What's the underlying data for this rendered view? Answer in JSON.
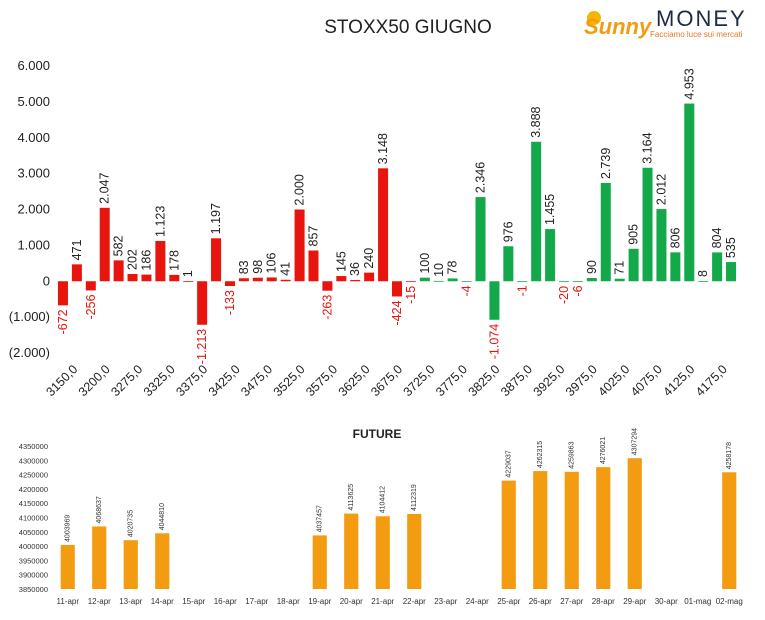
{
  "logo": {
    "brand_sunny": "Sunny",
    "brand_money": "MONEY",
    "tagline": "Facciamo luce sui mercati"
  },
  "chart_data": [
    {
      "type": "bar",
      "title": "STOXX50 GIUGNO",
      "ylim": [
        -2000,
        6000
      ],
      "y_tick_labels": [
        "6.000",
        "5.000",
        "4.000",
        "3.000",
        "2.000",
        "1.000",
        "0",
        "(1.000)",
        "(2.000)"
      ],
      "x_tick_labels": [
        "3150,0",
        "3200,0",
        "3275,0",
        "3325,0",
        "3375,0",
        "3425,0",
        "3475,0",
        "3525,0",
        "3575,0",
        "3625,0",
        "3675,0",
        "3725,0",
        "3775,0",
        "3825,0",
        "3875,0",
        "3925,0",
        "3975,0",
        "4025,0",
        "4075,0",
        "4125,0",
        "4175,0"
      ],
      "colors": {
        "red": "#e8140e",
        "green": "#13a94b",
        "neg_label": "#e8140e",
        "pos_label": "#222222"
      },
      "series": [
        {
          "color": "red",
          "values": [
            -672,
            471,
            -256,
            2047,
            582,
            202,
            186,
            1123,
            178,
            1,
            -1213,
            1197,
            -133,
            83,
            98,
            106,
            41,
            2000,
            857,
            -263,
            145,
            36,
            240,
            3148,
            -424,
            -15
          ]
        },
        {
          "color": "green",
          "values": [
            100,
            10,
            78,
            -4,
            2346,
            -1074,
            976,
            -1,
            3888,
            1455,
            -20,
            -6,
            90,
            2739,
            71,
            905,
            3164,
            2012,
            806,
            4953,
            8,
            804,
            535
          ]
        }
      ],
      "value_labels": [
        "-672",
        "471",
        "-256",
        "2.047",
        "582",
        "202",
        "186",
        "1.123",
        "178",
        "1",
        "-1.213",
        "1.197",
        "-133",
        "83",
        "98",
        "106",
        "41",
        "2.000",
        "857",
        "-263",
        "145",
        "36",
        "240",
        "3.148",
        "-424",
        "-15",
        "100",
        "10",
        "78",
        "-4",
        "2.346",
        "-1.074",
        "976",
        "-1",
        "3.888",
        "1.455",
        "-20",
        "-6",
        "90",
        "2.739",
        "71",
        "905",
        "3.164",
        "2.012",
        "806",
        "4.953",
        "8",
        "804",
        "535"
      ]
    },
    {
      "type": "bar",
      "title": "FUTURE",
      "ylim": [
        3850000,
        4350000
      ],
      "y_tick_labels": [
        "4350000",
        "4300000",
        "4250000",
        "4200000",
        "4150000",
        "4100000",
        "4050000",
        "4000000",
        "3950000",
        "3900000",
        "3850000"
      ],
      "categories": [
        "11-apr",
        "12-apr",
        "13-apr",
        "14-apr",
        "15-apr",
        "16-apr",
        "17-apr",
        "18-apr",
        "19-apr",
        "20-apr",
        "21-apr",
        "22-apr",
        "23-apr",
        "24-apr",
        "25-apr",
        "26-apr",
        "27-apr",
        "28-apr",
        "29-apr",
        "30-apr",
        "01-mag",
        "02-mag"
      ],
      "values": [
        4003969,
        4068637,
        4020735,
        4044810,
        null,
        null,
        null,
        null,
        4037457,
        4113625,
        4104412,
        4112319,
        null,
        null,
        4229037,
        4262315,
        4259863,
        4276021,
        4307294,
        null,
        null,
        4258178
      ],
      "color": "#f39c12"
    }
  ]
}
